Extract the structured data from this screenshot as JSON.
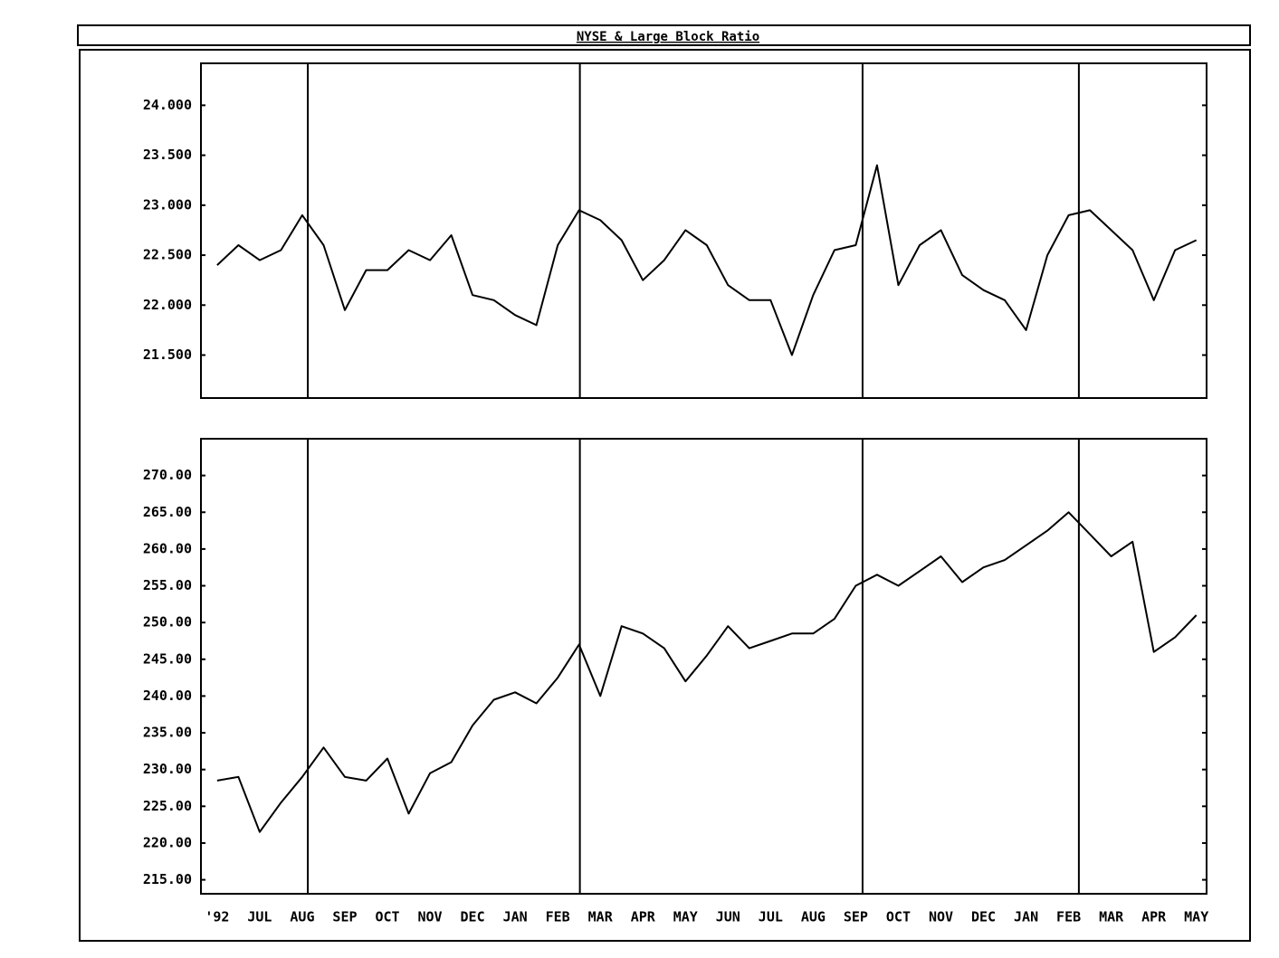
{
  "title": "NYSE & Large Block Ratio",
  "chart_data": [
    {
      "type": "line",
      "x": [
        0,
        0.5,
        1,
        1.5,
        2,
        2.5,
        3,
        3.5,
        4,
        4.5,
        5,
        5.5,
        6,
        6.5,
        7,
        7.5,
        8,
        8.5,
        9,
        9.5,
        10,
        10.5,
        11,
        11.5,
        12,
        12.5,
        13,
        13.5,
        14,
        14.5,
        15,
        15.5,
        16,
        16.5,
        17,
        17.5,
        18,
        18.5,
        19,
        19.5,
        20,
        20.5,
        21,
        21.5,
        22,
        22.5,
        23
      ],
      "series": [
        {
          "color": "#000000",
          "values": [
            22.4,
            22.6,
            22.45,
            22.55,
            22.9,
            22.6,
            21.95,
            22.35,
            22.35,
            22.55,
            22.45,
            22.7,
            22.1,
            22.05,
            21.9,
            21.8,
            22.6,
            22.95,
            22.85,
            22.65,
            22.25,
            22.45,
            22.75,
            22.6,
            22.2,
            22.05,
            22.05,
            21.5,
            22.1,
            22.55,
            22.6,
            23.4,
            22.2,
            22.6,
            22.75,
            22.3,
            22.15,
            22.05,
            21.75,
            22.5,
            22.9,
            22.95,
            22.75,
            22.55,
            22.05,
            22.55,
            22.65
          ]
        }
      ],
      "xlim": [
        -0.38,
        23.24
      ],
      "ylim": [
        21.07,
        24.42
      ],
      "yticks": [
        {
          "value": 21.5,
          "label": "21.500"
        },
        {
          "value": 22,
          "label": "22.000"
        },
        {
          "value": 22.5,
          "label": "22.500"
        },
        {
          "value": 23,
          "label": "23.000"
        },
        {
          "value": 23.5,
          "label": "23.500"
        },
        {
          "value": 24,
          "label": "24.000"
        }
      ],
      "vlines": [
        2.13,
        8.52,
        15.16,
        20.24
      ]
    },
    {
      "type": "line",
      "x": [
        0,
        0.5,
        1,
        1.5,
        2,
        2.5,
        3,
        3.5,
        4,
        4.5,
        5,
        5.5,
        6,
        6.5,
        7,
        7.5,
        8,
        8.5,
        9,
        9.5,
        10,
        10.5,
        11,
        11.5,
        12,
        12.5,
        13,
        13.5,
        14,
        14.5,
        15,
        15.5,
        16,
        16.5,
        17,
        17.5,
        18,
        18.5,
        19,
        19.5,
        20,
        20.5,
        21,
        21.5,
        22,
        22.5,
        23
      ],
      "series": [
        {
          "color": "#000000",
          "values": [
            228.5,
            229,
            221.5,
            225.5,
            229,
            233,
            229,
            228.5,
            231.5,
            224,
            229.5,
            231,
            236,
            239.5,
            240.5,
            239,
            242.5,
            247,
            240,
            249.5,
            248.5,
            246.5,
            242,
            245.5,
            249.5,
            246.5,
            247.5,
            248.5,
            248.5,
            250.5,
            255,
            256.5,
            255,
            257,
            259,
            255.5,
            257.5,
            258.5,
            260.5,
            262.5,
            265,
            262,
            259,
            261,
            246,
            248,
            251
          ]
        }
      ],
      "xlim": [
        -0.38,
        23.24
      ],
      "ylim": [
        213.1,
        275.0
      ],
      "yticks": [
        {
          "value": 215,
          "label": "215.00"
        },
        {
          "value": 220,
          "label": "220.00"
        },
        {
          "value": 225,
          "label": "225.00"
        },
        {
          "value": 230,
          "label": "230.00"
        },
        {
          "value": 235,
          "label": "235.00"
        },
        {
          "value": 240,
          "label": "240.00"
        },
        {
          "value": 245,
          "label": "245.00"
        },
        {
          "value": 250,
          "label": "250.00"
        },
        {
          "value": 255,
          "label": "255.00"
        },
        {
          "value": 260,
          "label": "260.00"
        },
        {
          "value": 265,
          "label": "265.00"
        },
        {
          "value": 270,
          "label": "270.00"
        }
      ],
      "xticks": [
        {
          "value": 0,
          "label": "'92"
        },
        {
          "value": 1,
          "label": "JUL"
        },
        {
          "value": 2,
          "label": "AUG"
        },
        {
          "value": 3,
          "label": "SEP"
        },
        {
          "value": 4,
          "label": "OCT"
        },
        {
          "value": 5,
          "label": "NOV"
        },
        {
          "value": 6,
          "label": "DEC"
        },
        {
          "value": 7,
          "label": "JAN"
        },
        {
          "value": 8,
          "label": "FEB"
        },
        {
          "value": 9,
          "label": "MAR"
        },
        {
          "value": 10,
          "label": "APR"
        },
        {
          "value": 11,
          "label": "MAY"
        },
        {
          "value": 12,
          "label": "JUN"
        },
        {
          "value": 13,
          "label": "JUL"
        },
        {
          "value": 14,
          "label": "AUG"
        },
        {
          "value": 15,
          "label": "SEP"
        },
        {
          "value": 16,
          "label": "OCT"
        },
        {
          "value": 17,
          "label": "NOV"
        },
        {
          "value": 18,
          "label": "DEC"
        },
        {
          "value": 19,
          "label": "JAN"
        },
        {
          "value": 20,
          "label": "FEB"
        },
        {
          "value": 21,
          "label": "MAR"
        },
        {
          "value": 22,
          "label": "APR"
        },
        {
          "value": 23,
          "label": "MAY"
        }
      ],
      "vlines": [
        2.13,
        8.52,
        15.16,
        20.24
      ]
    }
  ]
}
